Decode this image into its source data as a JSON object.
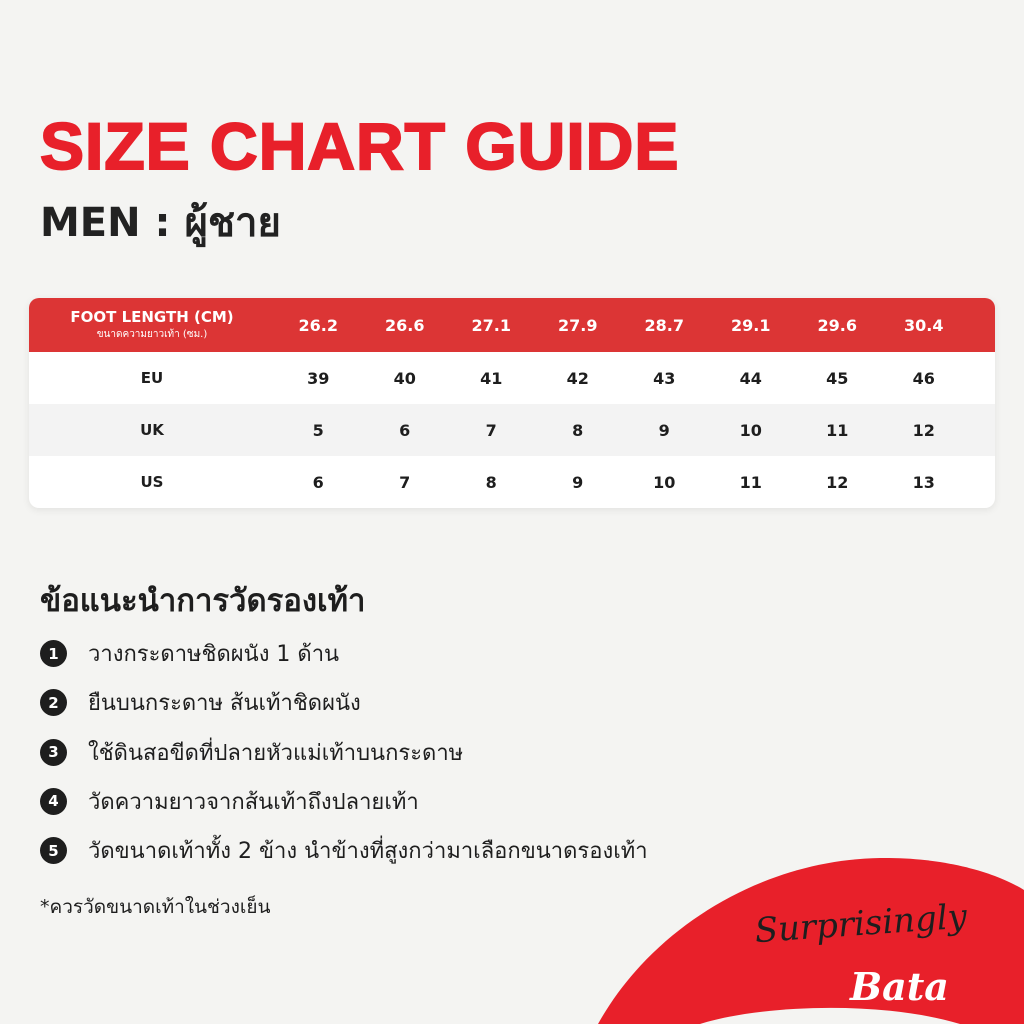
{
  "title": "SIZE CHART GUIDE",
  "subtitle": "MEN : ผู้ชาย",
  "table": {
    "header_label": "FOOT LENGTH (CM)",
    "header_sublabel": "ขนาดความยาวเท้า (ซม.)",
    "foot_length": [
      "26.2",
      "26.6",
      "27.1",
      "27.9",
      "28.7",
      "29.1",
      "29.6",
      "30.4"
    ],
    "rows": [
      {
        "label": "EU",
        "values": [
          "39",
          "40",
          "41",
          "42",
          "43",
          "44",
          "45",
          "46"
        ]
      },
      {
        "label": "UK",
        "values": [
          "5",
          "6",
          "7",
          "8",
          "9",
          "10",
          "11",
          "12"
        ]
      },
      {
        "label": "US",
        "values": [
          "6",
          "7",
          "8",
          "9",
          "10",
          "11",
          "12",
          "13"
        ]
      }
    ]
  },
  "tips": {
    "title": "ข้อแนะนำการวัดรองเท้า",
    "items": [
      {
        "num": "1",
        "text": "วางกระดาษชิดผนัง 1 ด้าน"
      },
      {
        "num": "2",
        "text": "ยืนบนกระดาษ ส้นเท้าชิดผนัง"
      },
      {
        "num": "3",
        "text": "ใช้ดินสอขีดที่ปลายหัวแม่เท้าบนกระดาษ"
      },
      {
        "num": "4",
        "text": "วัดความยาวจากส้นเท้าถึงปลายเท้า"
      },
      {
        "num": "5",
        "text": "วัดขนาดเท้าทั้ง 2 ข้าง นำข้างที่สูงกว่ามาเลือกขนาดรองเท้า"
      }
    ],
    "note": "*ควรวัดขนาดเท้าในช่วงเย็น"
  },
  "logo": {
    "tagline": "Surprisingly",
    "brand": "Bata"
  },
  "colors": {
    "accent": "#e8202a",
    "header": "#dc3535",
    "background": "#f4f4f2"
  }
}
